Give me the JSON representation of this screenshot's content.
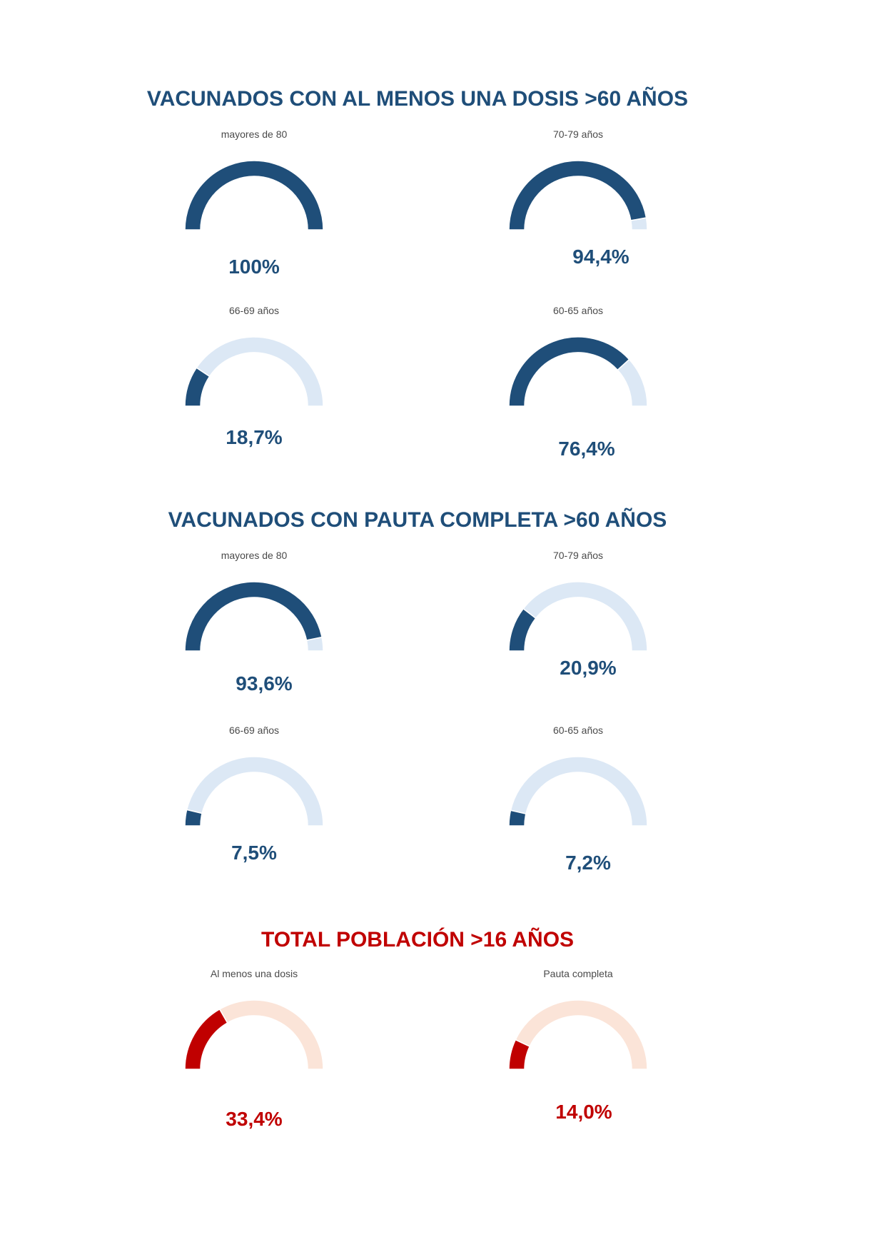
{
  "colors": {
    "blue_fill": "#1f4e79",
    "blue_track": "#dce8f5",
    "red_fill": "#c00000",
    "red_track": "#fbe4d8"
  },
  "sections": [
    {
      "title": "VACUNADOS CON AL MENOS UNA DOSIS >60 AÑOS",
      "color_scheme": "blue",
      "gauges": [
        {
          "label": "mayores de 80",
          "value": 100,
          "display": "100%"
        },
        {
          "label": "70-79 años",
          "value": 94.4,
          "display": "94,4%"
        },
        {
          "label": "66-69 años",
          "value": 18.7,
          "display": "18,7%"
        },
        {
          "label": "60-65 años",
          "value": 76.4,
          "display": "76,4%"
        }
      ]
    },
    {
      "title": "VACUNADOS CON PAUTA COMPLETA >60 AÑOS",
      "color_scheme": "blue",
      "gauges": [
        {
          "label": "mayores de 80",
          "value": 93.6,
          "display": "93,6%"
        },
        {
          "label": "70-79 años",
          "value": 20.9,
          "display": "20,9%"
        },
        {
          "label": "66-69 años",
          "value": 7.5,
          "display": "7,5%"
        },
        {
          "label": "60-65 años",
          "value": 7.2,
          "display": "7,2%"
        }
      ]
    },
    {
      "title": "TOTAL POBLACIÓN >16 AÑOS",
      "color_scheme": "red",
      "gauges": [
        {
          "label": "Al menos una dosis",
          "value": 33.4,
          "display": "33,4%"
        },
        {
          "label": "Pauta completa",
          "value": 14.0,
          "display": "14,0%"
        }
      ]
    }
  ],
  "chart_data": [
    {
      "type": "gauge",
      "title": "VACUNADOS CON AL MENOS UNA DOSIS >60 AÑOS",
      "unit": "%",
      "range": [
        0,
        100
      ],
      "categories": [
        "mayores de 80",
        "70-79 años",
        "66-69 años",
        "60-65 años"
      ],
      "values": [
        100,
        94.4,
        18.7,
        76.4
      ]
    },
    {
      "type": "gauge",
      "title": "VACUNADOS CON PAUTA COMPLETA >60 AÑOS",
      "unit": "%",
      "range": [
        0,
        100
      ],
      "categories": [
        "mayores de 80",
        "70-79 años",
        "66-69 años",
        "60-65 años"
      ],
      "values": [
        93.6,
        20.9,
        7.5,
        7.2
      ]
    },
    {
      "type": "gauge",
      "title": "TOTAL POBLACIÓN >16 AÑOS",
      "unit": "%",
      "range": [
        0,
        100
      ],
      "categories": [
        "Al menos una dosis",
        "Pauta completa"
      ],
      "values": [
        33.4,
        14.0
      ]
    }
  ]
}
